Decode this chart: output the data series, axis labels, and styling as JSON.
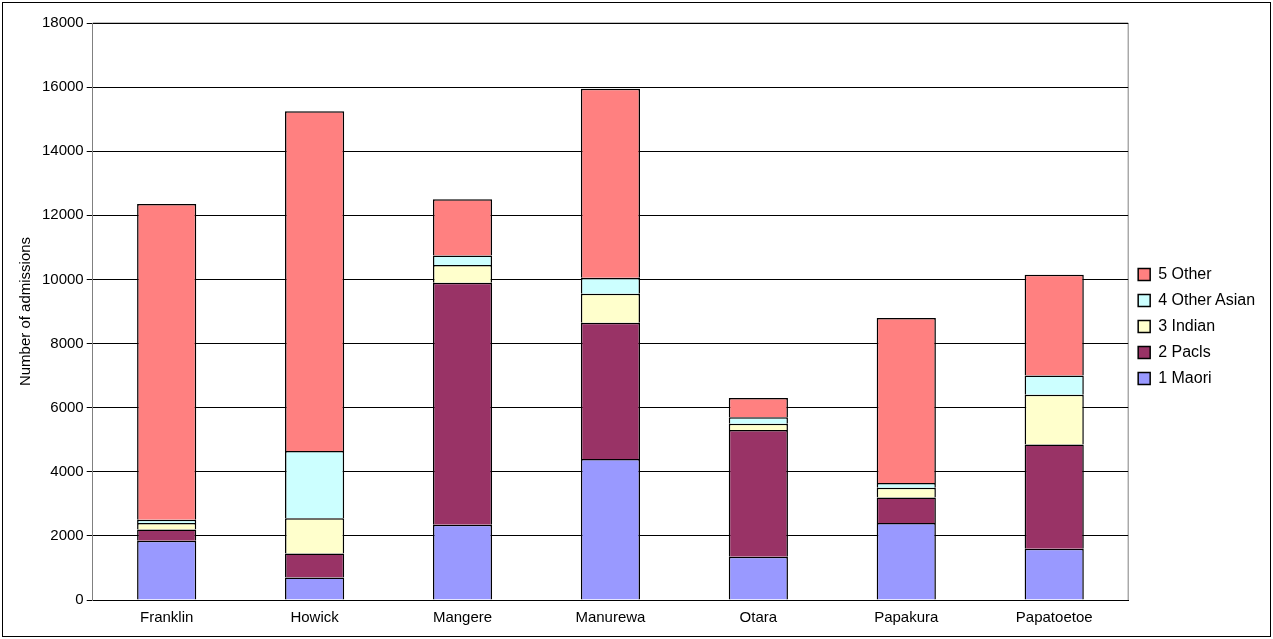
{
  "chart_data": {
    "type": "bar",
    "stacked": true,
    "ylabel": "Number of admissions",
    "categories": [
      "Franklin",
      "Howick",
      "Mangere",
      "Manurewa",
      "Otara",
      "Papakura",
      "Papatoetoe"
    ],
    "series": [
      {
        "name": "1 Maori",
        "color": "#9999ff",
        "values": [
          1850,
          700,
          2350,
          4400,
          1350,
          2400,
          1600
        ]
      },
      {
        "name": "2 Pacls",
        "color": "#993366",
        "values": [
          350,
          750,
          7550,
          4250,
          3950,
          800,
          3250
        ]
      },
      {
        "name": "3 Indian",
        "color": "#ffffcc",
        "values": [
          200,
          1100,
          550,
          900,
          200,
          300,
          1550
        ]
      },
      {
        "name": "4 Other Asian",
        "color": "#ccffff",
        "values": [
          100,
          2100,
          300,
          500,
          200,
          150,
          600
        ]
      },
      {
        "name": "5 Other",
        "color": "#ff8080",
        "values": [
          9850,
          10600,
          1750,
          5900,
          600,
          5150,
          3150
        ]
      }
    ],
    "ylim": [
      0,
      18000
    ],
    "yticks": [
      0,
      2000,
      4000,
      6000,
      8000,
      10000,
      12000,
      14000,
      16000,
      18000
    ],
    "grid": "y",
    "legend": "right"
  }
}
